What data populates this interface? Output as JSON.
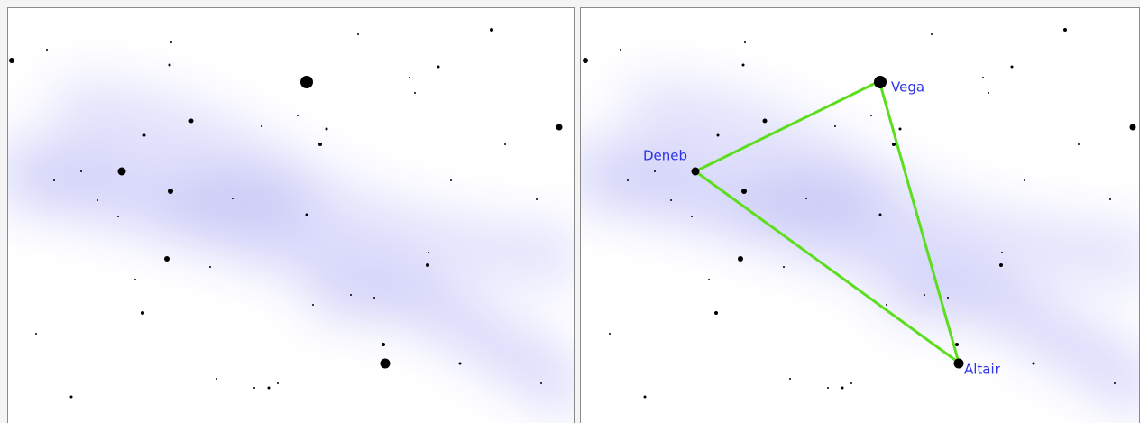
{
  "star_labels": [
    "Deneb",
    "Vega",
    "Altair"
  ]
}
